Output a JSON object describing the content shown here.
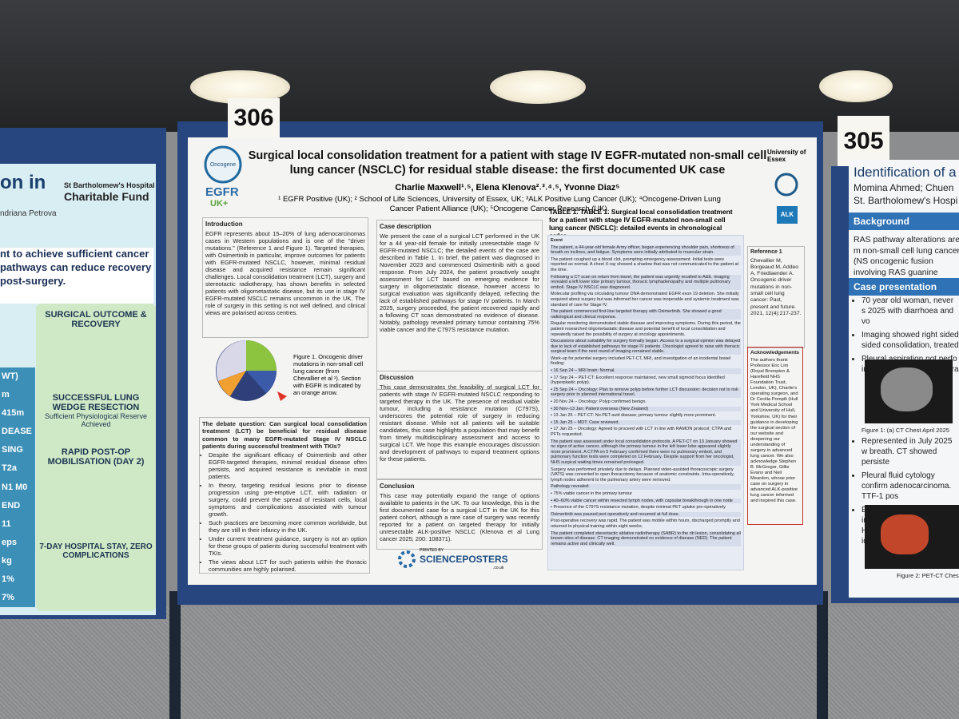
{
  "signs": {
    "left": "306",
    "right": "305"
  },
  "poster": {
    "logos": {
      "oncogene": "Oncogene",
      "egfr": "EGFR",
      "egfr_uk": "UK+",
      "essex": "University of Essex",
      "alk": "ALK"
    },
    "title": "Surgical local consolidation treatment for a patient with stage IV EGFR-mutated non-small cell lung cancer (NSCLC) for residual stable disease: the first documented UK case",
    "authors": "Charlie Maxwell¹˒⁵, Elena Klenova²˒³˒⁴˒⁵, Yvonne Diaz⁵",
    "affiliations": "¹ EGFR Positive (UK); ² School of Life Sciences, University of Essex, UK; ³ALK Positive Lung Cancer (UK); ⁴Oncogene-Driven Lung Cancer Patient Alliance (UK); ⁵Oncogene Cancer Research (UK).",
    "introduction": {
      "heading": "Introduction",
      "text": "EGFR represents about 15–20% of lung adenocarcinomas cases in Western populations and is one of the \"driver mutations.\" (Reference 1 and Figure 1). Targeted therapies, with Osimertinib in particular, improve outcomes for patients with EGFR-mutated NSCLC, however, minimal residual disease and acquired resistance remain significant challenges. Local consolidation treatment (LCT), surgery and stereotactic radiotherapy, has shown benefits in selected patients with oligometastatic disease, but its use in stage IV EGFR-mutated NSCLC remains uncommon in the UK. The role of surgery in this setting is not well defined, and clinical views are polarised across centres."
    },
    "figure_caption": "Figure 1. Oncogenic driver mutations in non-small cell lung cancer (from Chevallier et al ¹). Section with EGFR is indicated by an orange arrow.",
    "debate": {
      "heading": "The debate question: Can surgical local consolidation treatment (LCT) be beneficial for residual disease common to many EGFR-mutated Stage IV NSCLC patients during successful treatment with TKIs?",
      "bullets": [
        "Despite the significant efficacy of Osimertinib and other EGFR-targeted therapies, minimal residual disease often persists, and acquired resistance is inevitable in most patients.",
        "In theory, targeting residual lesions prior to disease progression using pre-emptive LCT, with radiation or surgery, could prevent the spread of resistant cells, local symptoms and complications associated with tumour growth.",
        "Such practices are becoming more common worldwide, but they are still in their infancy in the UK.",
        "Under current treatment guidance, surgery is not an option for these groups of patients during successful treatment with TKIs.",
        "The views about LCT for such patients within the thoracic communities are highly polarised."
      ]
    },
    "case": {
      "heading": "Case description",
      "text": "We present the case of a surgical LCT performed in the UK for a 44 year-old female for initially unresectable stage IV EGFR-mutated NSCLC; the detailed events of the case are described in Table 1. In brief, the patient was diagnosed in November 2023 and commenced Osimertinib with a good response. From July 2024, the patient proactively sought assessment for LCT based on emerging evidence for surgery in oligometastatic disease, however access to surgical evaluation was significantly delayed, reflecting the lack of established pathways for stage IV patients. In March 2025, surgery proceeded, the patient recovered rapidly and a following CT scan demonstrated no evidence of disease. Notably, pathology revealed primary tumour containing 75% viable cancer and the C797S resistance mutation."
    },
    "discussion": {
      "heading": "Discussion",
      "text": "This case demonstrates the feasibility of surgical LCT for patients with stage IV EGFR-mutated NSCLC responding to targeted therapy in the UK. The presence of residual viable tumour, including a resistance mutation (C797S), underscores the potential role of surgery in reducing resistant disease. While not all patients will be suitable candidates, this case highlights a population that may benefit from timely multidisciplinary assessment and access to surgical LCT. We hope this example encourages discussion and development of pathways to expand treatment options for these patients."
    },
    "conclusion": {
      "heading": "Conclusion",
      "text": "This case may potentially expand the range of options available to patients in the UK. To our knowledge, this is the first documented case for a surgical LCT in the UK for this patient cohort, although a rare case of surgery was recently reported for a patient on targeted therapy for initially unresectable ALK-positive NSCLC (Klenova et al Lung cancer 2025; 200: 108371)."
    },
    "printed_by": {
      "label": "PRINTED BY",
      "brand": "SCIENCEPOSTERS",
      "domain": ".co.uk"
    },
    "table": {
      "title": "TABLE 1. TABLE 1. Surgical local consolidation treatment for a patient with stage IV EGFR-mutated non-small cell lung cancer (NSCLC): detailed events in chronological order",
      "events": [
        "Event",
        "The patient, a 44-year-old female Army officer, began experiencing shoulder pain, shortness of breath on inclines, and fatigue. Symptoms were initially attributed to muscular strain.",
        "The patient coughed up a blood clot, prompting emergency assessment. Initial tests were reported as normal. A chest X-ray showed a shadow that was not communicated to the patient at the time.",
        "Following a CT scan on return from travel, the patient was urgently recalled to A&E. Imaging revealed a left lower lobe primary tumour, thoracic lymphadenopathy and multiple pulmonary emboli. Stage IV NSCLC was diagnosed.",
        "Molecular profiling via circulating tumour DNA demonstrated EGFR exon 19 deletion. She initially enquired about surgery but was informed her cancer was inoperable and systemic treatment was standard of care for Stage IV.",
        "The patient commenced first-line targeted therapy with Osimertinib. She showed a good radiological and clinical response.",
        "Regular monitoring demonstrated stable disease and improving symptoms. During this period, the patient researched oligometastatic disease and potential benefit of local consolidation and repeatedly raised the possibility of surgery at oncology appointments.",
        "Discussions about suitability for surgery formally began. Access to a surgical opinion was delayed due to lack of established pathways for stage IV patients. Oncologist agreed to raise with thoracic surgical team if the next round of imaging remained stable.",
        "Work-up for potential surgery included PET-CT, MRI, and investigation of an incidental bowel finding:",
        "• 16 Sep 24 – MRI brain: Normal.",
        "• 17 Sep 24 – PET-CT: Excellent response maintained, new small sigmoid focus identified (hyperplastic polyp).",
        "• 25 Sep 24 – Oncology: Plan to remove polyp before further LCT discussion; decision not to risk surgery prior to planned international travel.",
        "• 20 Nov 24 – Oncology: Polyp confirmed benign.",
        "• 30 Nov–13 Jan: Patient overseas (New Zealand)",
        "• 13 Jan 25 – PET-CT: No PET-avid disease; primary tumour slightly more prominent.",
        "• 15 Jan 25 – MDT: Case reviewed.",
        "• 17 Jan 25 – Oncology: Agreed to proceed with LCT in line with RAMON protocol; CTPA and PFTs requested.",
        "The patient was assessed under local consolidation protocols. A PET-CT on 13 January showed no signs of active cancer, although the primary tumour in the left lower lobe appeared slightly more prominent. A CTPA on 5 February confirmed there were no pulmonary emboli, and pulmonary function tests were completed on 12 February. Despite support from her oncologist, NHS surgical waiting times remained prolonged.",
        "Surgery was performed privately due to delays. Planned video-assisted thoracoscopic surgery (VATS) was converted to open thoracotomy because of anatomic constraints. Intra-operatively, lymph nodes adherent to the pulmonary artery were removed.",
        "Pathology revealed:",
        "• 75% viable cancer in the primary tumour",
        "• 40–60% viable cancer within resected lymph nodes, with capsular breakthrough in one node",
        "• Presence of the C797S resistance mutation, despite minimal PET uptake pre-operatively",
        "Osimertinib was paused peri-operatively and resumed at full dose.",
        "Post-operative recovery was rapid. The patient was mobile within hours, discharged promptly and returned to physical training within eight weeks.",
        "The patient completed stereotactic ablative radiotherapy (SABR) to the rib lesion, consolidating all known sites of disease. CT imaging demonstrated no evidence of disease (NED). The patient remains active and clinically well."
      ]
    },
    "reference": {
      "heading": "Reference 1",
      "text": "Chevallier M, Borgeaud M, Addeo A, Friedlaender A. Oncogenic driver mutations in non-small cell lung cancer: Past, present and future. 2021, 12(4):217-237."
    },
    "acknowledgements": {
      "heading": "Acknowledgements",
      "text": "The authors thank Professor Eric Lim (Royal Brompton & Harefield NHS Foundation Trust, London, UK), Charlie's operating surgeon, and Dr Cecilia Pompili (Hull York Medical School and University of Hull, Yorkshire, UK) for their guidance in developing the surgical section of our website and deepening our understanding of surgery in advanced lung cancer. We also acknowledge Stephen B. McGregor, Gillie Evans and Neil Meardon, whose prior case on surgery in advanced ALK-positive lung cancer informed and inspired this case."
    }
  },
  "left_poster": {
    "title_fragment": "on in",
    "fund": "St Bartholomew's Hospital",
    "fund_name": "Charitable Fund",
    "author_fragment": "ndriana Petrova",
    "banner": "nt to achieve sufficient cancer pathways can reduce recovery post-surgery.",
    "outcome_heading": "SURGICAL OUTCOME & RECOVERY",
    "resection": "SUCCESSFUL LUNG WEDGE RESECTION",
    "reserve": "Sufficient Physiological Reserve Achieved",
    "mobilisation": "RAPID POST-OP MOBILISATION (DAY 2)",
    "stay": "7-DAY HOSPITAL STAY, ZERO COMPLICATIONS",
    "side_fragments": [
      "WT)",
      "m",
      "415m",
      "DEASE",
      "SING",
      "T2a",
      "N1 M0",
      "END",
      "11",
      "eps",
      "kg",
      "1%",
      "7%"
    ]
  },
  "right_poster": {
    "title_fragment": "Identification of a",
    "authors_fragment": "Momina Ahmed; Chuen",
    "hospital_fragment": "St. Bartholomew's Hospi",
    "background_heading": "Background",
    "background_text": "RAS pathway alterations are m non-small cell lung cancer (NS oncogenic fusion involving RAS guanine exchange factor (GEF",
    "case_heading": "Case presentation",
    "bullets_top": [
      "70 year old woman, never s 2025 with diarrhoea and vo",
      "Imaging showed right sided sided consolidation, treated",
      "Pleural aspiration not perfo insufficient fluid for safe dra"
    ],
    "figure1_caption": "Figure 1: (a) CT Chest April 2025",
    "bullets_bottom": [
      "Represented in July 2025 w breath. CT showed persiste",
      "Pleural fluid cytology confirm adenocarcinoma. TTF-1 pos",
      "Extensive imaging including OGD, CT Head/Chest/Abdo not identify a primary (Figure"
    ],
    "figure2_caption": "Figure 2: PET-CT Ches"
  }
}
